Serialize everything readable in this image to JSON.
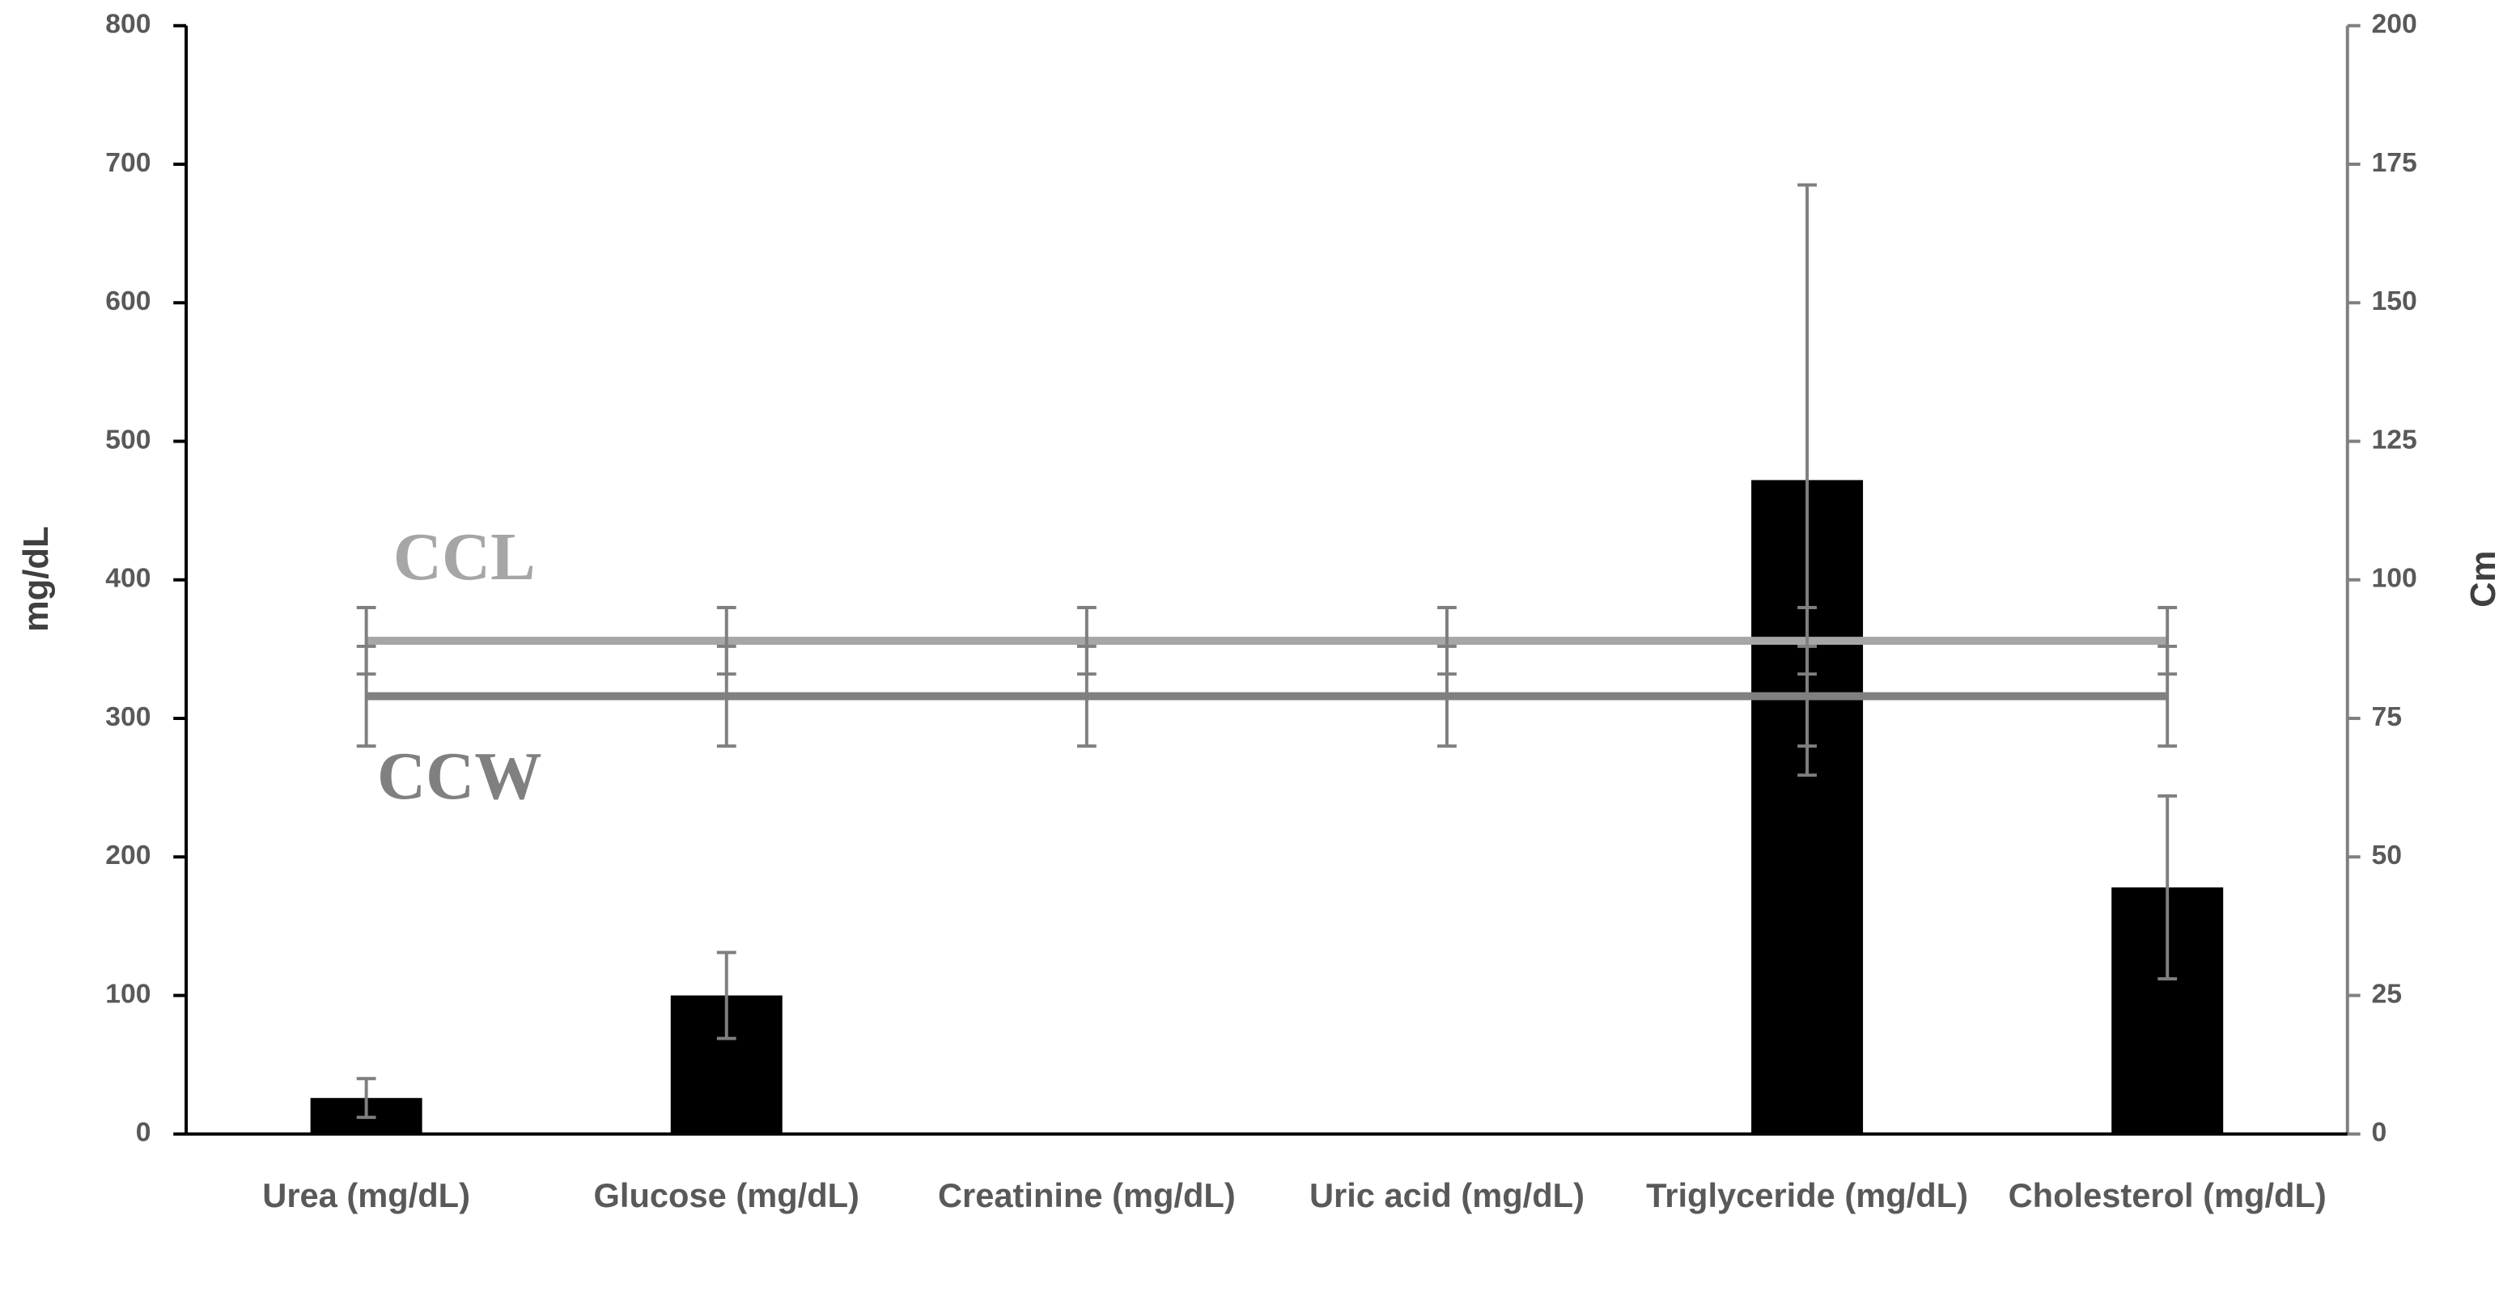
{
  "chart_data": {
    "type": "bar",
    "categories": [
      "Urea (mg/dL)",
      "Glucose (mg/dL)",
      "Creatinine (mg/dL)",
      "Uric acid (mg/dL)",
      "Triglyceride (mg/dL)",
      "Cholesterol (mg/dL)"
    ],
    "y_label": "mg/dL",
    "y2_label": "Cm",
    "ylim": [
      0,
      800
    ],
    "yticks": [
      0,
      100,
      200,
      300,
      400,
      500,
      600,
      700,
      800
    ],
    "y2lim": [
      0,
      200
    ],
    "y2ticks": [
      0,
      25,
      50,
      75,
      100,
      125,
      150,
      175,
      200
    ],
    "series": [
      {
        "type": "bar",
        "color": "#000000",
        "error_color": "#7f7f7f",
        "values": [
          26,
          100,
          1,
          1,
          472,
          178
        ],
        "errors": [
          14,
          31,
          0,
          0,
          213,
          66
        ]
      },
      {
        "type": "line",
        "name": "CCL",
        "axis": "y2",
        "color": "#a6a6a6",
        "error_color": "#7f7f7f",
        "values": [
          89,
          89,
          89,
          89,
          89,
          89
        ],
        "errors": [
          6,
          6,
          6,
          6,
          6,
          6
        ]
      },
      {
        "type": "line",
        "name": "CCW",
        "axis": "y2",
        "color": "#808080",
        "error_color": "#7f7f7f",
        "values": [
          79,
          79,
          79,
          79,
          79,
          79
        ],
        "errors": [
          9,
          9,
          9,
          9,
          9,
          9
        ]
      }
    ]
  }
}
